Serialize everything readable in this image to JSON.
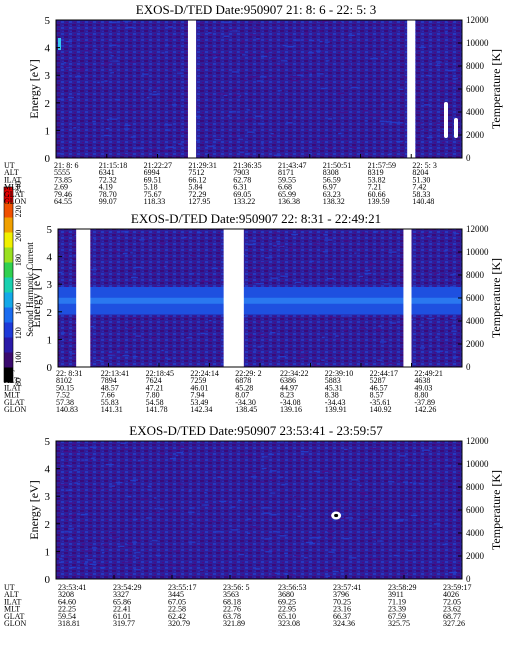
{
  "colorbar": {
    "label": "Second Harmonic Current",
    "ticks": [
      "80",
      "100",
      "120",
      "140",
      "160",
      "180",
      "200",
      "220",
      "240"
    ],
    "colors": [
      "#000000",
      "#3a0a6e",
      "#2a1aa8",
      "#1e3ad8",
      "#1a6cf0",
      "#14a8e8",
      "#18d0b0",
      "#30d050",
      "#9ae020",
      "#f0f000",
      "#f0a000",
      "#f05000",
      "#e00000"
    ]
  },
  "chart_data": [
    {
      "type": "heatmap",
      "title": "EXOS-D/TED   Date:950907  21: 8: 6 - 22: 5: 3",
      "ylabel": "Energy [eV]",
      "ylabel_right": "Temperature [K]",
      "ylim": [
        0,
        5
      ],
      "yticks": [
        "0",
        "1",
        "2",
        "3",
        "4",
        "5"
      ],
      "y2lim": [
        0,
        12000
      ],
      "y2ticks": [
        "0",
        "2000",
        "4000",
        "6000",
        "8000",
        "10000",
        "12000"
      ],
      "data_gaps": [
        [
          0.325,
          0.345
        ],
        [
          0.865,
          0.885
        ]
      ],
      "band": null,
      "features": [
        "left edge spike",
        "right edge white temperature traces"
      ],
      "orbit_table": {
        "row_labels": [
          "UT",
          "ALT",
          "ILAT",
          "MLT",
          "GLAT",
          "GLON"
        ],
        "columns": [
          [
            "21: 8: 6",
            "5555",
            "73.85",
            "2.69",
            "79.46",
            "64.55"
          ],
          [
            "21:15:18",
            "6341",
            "72.32",
            "4.19",
            "78.70",
            "99.07"
          ],
          [
            "21:22:27",
            "6994",
            "69.51",
            "5.18",
            "75.67",
            "118.33"
          ],
          [
            "21:29:31",
            "7512",
            "66.12",
            "5.84",
            "72.29",
            "127.95"
          ],
          [
            "21:36:35",
            "7903",
            "62.78",
            "6.31",
            "69.05",
            "133.22"
          ],
          [
            "21:43:47",
            "8171",
            "59.55",
            "6.68",
            "65.99",
            "136.38"
          ],
          [
            "21:50:51",
            "8308",
            "56.59",
            "6.97",
            "63.23",
            "138.32"
          ],
          [
            "21:57:59",
            "8319",
            "53.82",
            "7.21",
            "60.66",
            "139.59"
          ],
          [
            "22: 5: 3",
            "8204",
            "51.30",
            "7.42",
            "58.33",
            "140.48"
          ]
        ]
      }
    },
    {
      "type": "heatmap",
      "title": "EXOS-D/TED   Date:950907  22: 8:31 - 22:49:21",
      "ylabel": "Energy [eV]",
      "ylabel_right": "Temperature [K]",
      "ylim": [
        0,
        5
      ],
      "yticks": [
        "0",
        "1",
        "2",
        "3",
        "4",
        "5"
      ],
      "y2lim": [
        0,
        12000
      ],
      "y2ticks": [
        "0",
        "2000",
        "4000",
        "6000",
        "8000",
        "10000",
        "12000"
      ],
      "data_gaps": [
        [
          0.045,
          0.08
        ],
        [
          0.41,
          0.46
        ],
        [
          0.855,
          0.875
        ]
      ],
      "band": {
        "center_ev": 2.4,
        "half_width_ev": 0.5
      },
      "features": [
        "mid-energy enhancement band near 2-3 eV"
      ],
      "orbit_table": {
        "row_labels": [
          "UT",
          "ALT",
          "ILAT",
          "MLT",
          "GLAT",
          "GLON"
        ],
        "columns": [
          [
            "22: 8:31",
            "8102",
            "50.15",
            "7.52",
            "57.38",
            "140.83"
          ],
          [
            "22:13:41",
            "7894",
            "48.57",
            "7.66",
            "55.83",
            "141.31"
          ],
          [
            "22:18:45",
            "7624",
            "47.21",
            "7.80",
            "54.58",
            "141.78"
          ],
          [
            "22:24:14",
            "7259",
            "46.01",
            "7.94",
            "53.49",
            "142.34"
          ],
          [
            "22:29: 2",
            "6878",
            "45.28",
            "8.07",
            "-34.30",
            "138.45"
          ],
          [
            "22:34:22",
            "6386",
            "44.97",
            "8.23",
            "-34.08",
            "139.16"
          ],
          [
            "22:39:10",
            "5883",
            "45.31",
            "8.38",
            "-34.43",
            "139.91"
          ],
          [
            "22:44:17",
            "5287",
            "46.57",
            "8.57",
            "-35.61",
            "140.92"
          ],
          [
            "22:49:21",
            "4638",
            "49.03",
            "8.80",
            "-37.89",
            "142.26"
          ]
        ]
      }
    },
    {
      "type": "heatmap",
      "title": "EXOS-D/TED   Date:950907  23:53:41 - 23:59:57",
      "ylabel": "Energy [eV]",
      "ylabel_right": "Temperature [K]",
      "ylim": [
        0,
        5
      ],
      "yticks": [
        "0",
        "1",
        "2",
        "3",
        "4",
        "5"
      ],
      "y2lim": [
        0,
        12000
      ],
      "y2ticks": [
        "0",
        "2000",
        "4000",
        "6000",
        "8000",
        "10000",
        "12000"
      ],
      "data_gaps": [],
      "band": null,
      "features": [
        "isolated hot spot near 2.3 eV"
      ],
      "orbit_table": {
        "row_labels": [
          "UT",
          "ALT",
          "ILAT",
          "MLT",
          "GLAT",
          "GLON"
        ],
        "columns": [
          [
            "23:53:41",
            "3208",
            "64.60",
            "22.25",
            "59.54",
            "318.81"
          ],
          [
            "23:54:29",
            "3327",
            "65.86",
            "22.41",
            "61.01",
            "319.77"
          ],
          [
            "23:55:17",
            "3445",
            "67.05",
            "22.58",
            "62.42",
            "320.79"
          ],
          [
            "23:56: 5",
            "3563",
            "68.18",
            "22.76",
            "63.78",
            "321.89"
          ],
          [
            "23:56:53",
            "3680",
            "69.25",
            "22.95",
            "65.10",
            "323.08"
          ],
          [
            "23:57:41",
            "3796",
            "70.25",
            "23.16",
            "66.37",
            "324.36"
          ],
          [
            "23:58:29",
            "3911",
            "71.19",
            "23.39",
            "67.59",
            "325.75"
          ],
          [
            "23:59:17",
            "4026",
            "72.05",
            "23.62",
            "68.77",
            "327.26"
          ]
        ]
      }
    }
  ]
}
